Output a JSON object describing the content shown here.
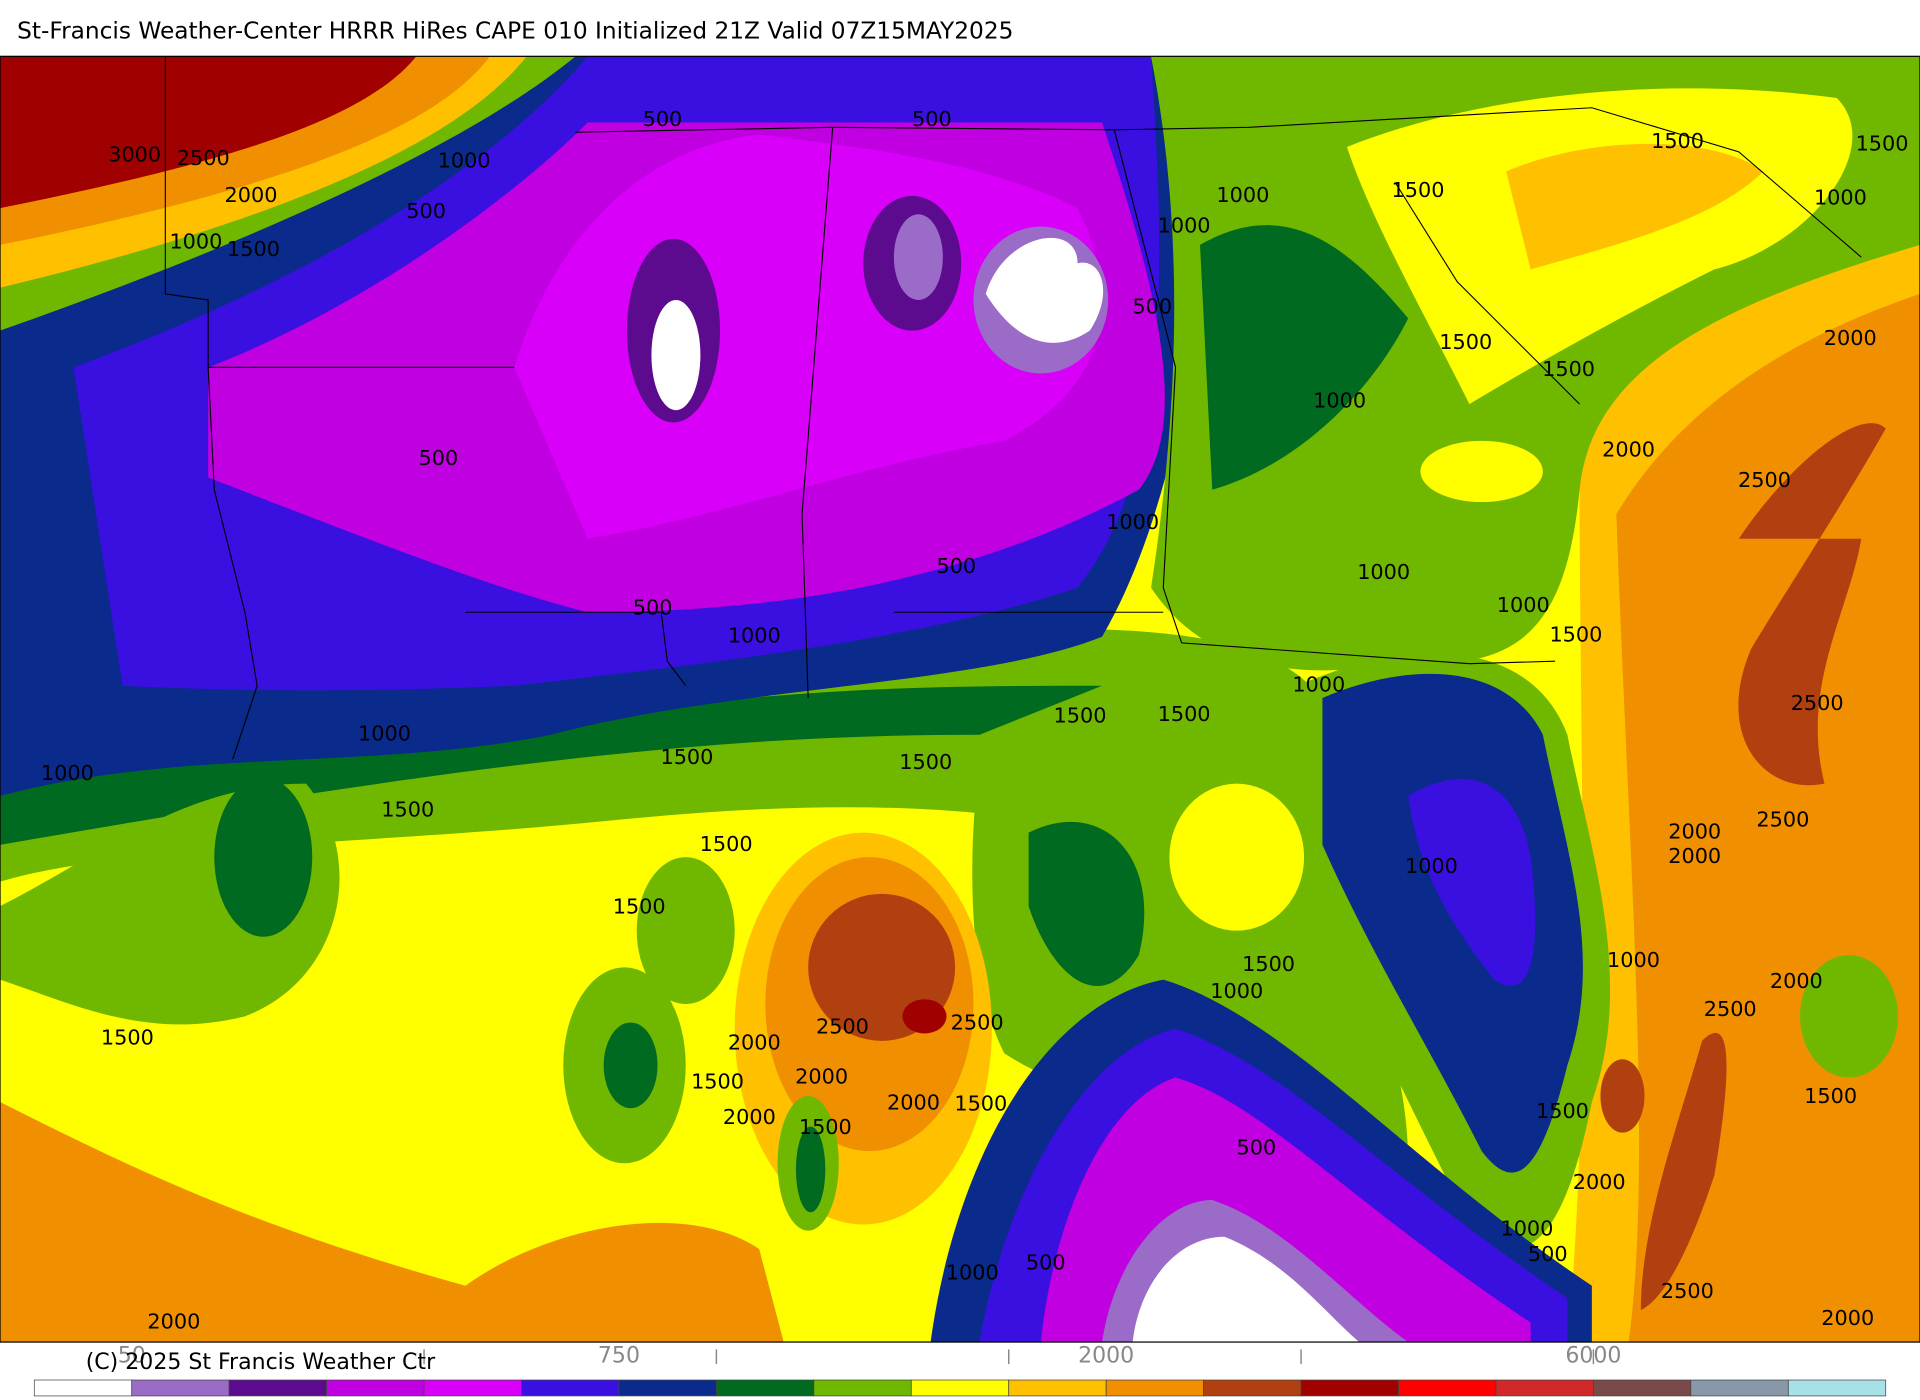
{
  "header": {
    "title": "St-Francis Weather-Center HRRR HiRes CAPE  010 Initialized  21Z Valid 07Z15MAY2025"
  },
  "contour_labels": [
    "500",
    "500",
    "3000",
    "2500",
    "1000",
    "2000",
    "500",
    "1000",
    "1500",
    "1500",
    "1500",
    "1000",
    "1500",
    "1000",
    "1000",
    "500",
    "2000",
    "1500",
    "1500",
    "1000",
    "500",
    "2000",
    "2500",
    "1000",
    "500",
    "1000",
    "500",
    "1000",
    "1000",
    "1500",
    "1000",
    "2500",
    "1500",
    "1500",
    "1000",
    "1500",
    "1500",
    "1000",
    "1500",
    "2500",
    "2000",
    "2000",
    "1500",
    "1000",
    "1500",
    "1000",
    "1500",
    "2000",
    "1000",
    "2500",
    "2500",
    "2500",
    "1500",
    "2000",
    "2000",
    "1500",
    "2000",
    "1500",
    "1500",
    "2000",
    "1500",
    "1500",
    "500",
    "2000",
    "1000",
    "500",
    "500",
    "1000",
    "2500",
    "2000",
    "2000"
  ],
  "colorbar": {
    "colors": [
      "#ffffff",
      "#9b6bc8",
      "#5c0a8e",
      "#c000e0",
      "#d800f8",
      "#3a10e0",
      "#0a2a8c",
      "#006a20",
      "#70b800",
      "#ffff00",
      "#ffc000",
      "#f09000",
      "#b04010",
      "#a00000",
      "#ff0000",
      "#d02828",
      "#7a4a4a",
      "#8898a8",
      "#a8e0e8"
    ],
    "labels": [
      "50",
      "750",
      "2000",
      "6000"
    ]
  },
  "footer": {
    "copyright": "(C) 2025 St Francis Weather Ctr"
  }
}
